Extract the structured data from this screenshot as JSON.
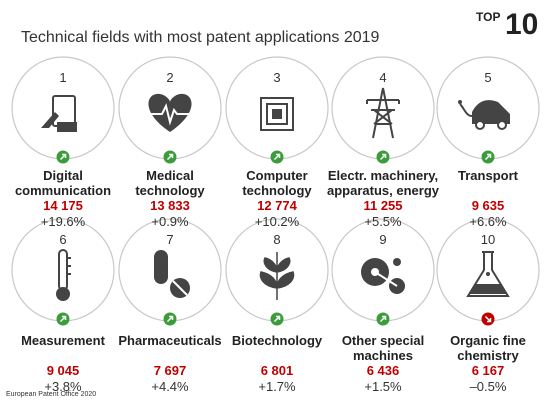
{
  "header": {
    "title": "Technical fields with most patent applications 2019",
    "badge_label": "TOP",
    "badge_number": 10
  },
  "fields": [
    {
      "rank": 1,
      "name": "Digital communication",
      "value": "14 175",
      "change": "+19.6%"
    },
    {
      "rank": 2,
      "name": "Medical technology",
      "value": "13 833",
      "change": "+0.9%"
    },
    {
      "rank": 3,
      "name": "Computer technology",
      "value": "12 774",
      "change": "+10.2%"
    },
    {
      "rank": 4,
      "name": "Electr. machinery, apparatus, energy",
      "value": "11 255",
      "change": "+5.5%"
    },
    {
      "rank": 5,
      "name": "Transport",
      "value": "9 635",
      "change": "+6.6%"
    },
    {
      "rank": 6,
      "name": "Measurement",
      "value": "9 045",
      "change": "+3.8%"
    },
    {
      "rank": 7,
      "name": "Pharmaceuticals",
      "value": "7 697",
      "change": "+4.4%"
    },
    {
      "rank": 8,
      "name": "Biotechnology",
      "value": "6 801",
      "change": "+1.7%"
    },
    {
      "rank": 9,
      "name": "Other special machines",
      "value": "6 436",
      "change": "+1.5%"
    },
    {
      "rank": 10,
      "name": "Organic fine chemistry",
      "value": "6 167",
      "change": "–0.5%"
    }
  ],
  "footer": "European Patent Office 2020"
}
